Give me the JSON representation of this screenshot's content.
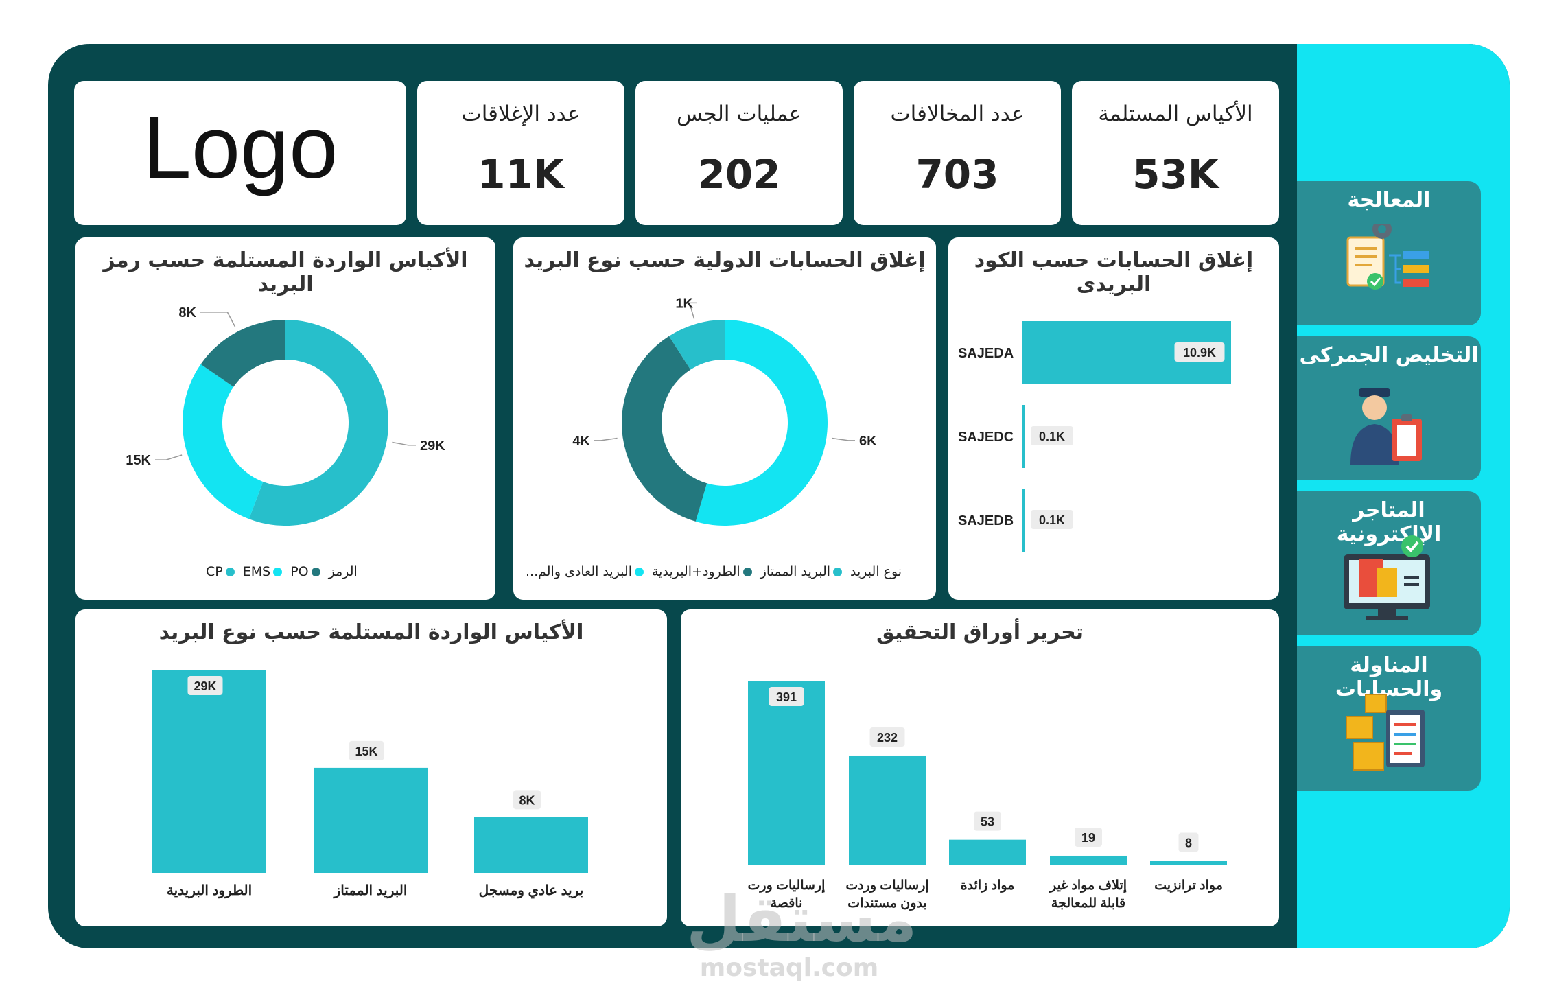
{
  "logo": {
    "text": "Logo"
  },
  "kpis": [
    {
      "title": "عدد الإغلاقات",
      "value": "11K"
    },
    {
      "title": "عمليات الجس",
      "value": "202"
    },
    {
      "title": "عدد المخالافات",
      "value": "703"
    },
    {
      "title": "الأكياس المستلمة",
      "value": "53K"
    }
  ],
  "sidebar": {
    "items": [
      {
        "label": "المعالجة",
        "icon": "processing-icon"
      },
      {
        "label": "التخليص الجمركى",
        "icon": "customs-officer-icon"
      },
      {
        "label": "المتاجر الإلكترونية",
        "icon": "ecommerce-store-icon"
      },
      {
        "label": "المناولة والحسابات",
        "icon": "boxes-clipboard-icon"
      }
    ]
  },
  "colors": {
    "dark": "#07484c",
    "teal": "#27bfcb",
    "cyan": "#13e4f2",
    "darkteal": "#23787e"
  },
  "watermark": {
    "arabic": "مستقل",
    "latin": "mostaql.com"
  },
  "chart_data": [
    {
      "id": "donut_code",
      "type": "pie",
      "title": "الأكياس الواردة المستلمة حسب رمز البريد",
      "legend_title": "الرمز",
      "labels": [
        "CP",
        "EMS",
        "PO"
      ],
      "values": [
        29,
        15,
        8
      ],
      "value_labels": [
        "29K",
        "15K",
        "8K"
      ],
      "colors": [
        "#27bfcb",
        "#13e4f2",
        "#23787e"
      ]
    },
    {
      "id": "donut_intl",
      "type": "pie",
      "title": "إغلاق الحسابات الدولية حسب نوع البريد",
      "legend_title": "نوع البريد",
      "labels": [
        "البريد العادى والم...",
        "الطرود+البريدية",
        "البريد الممتاز"
      ],
      "values": [
        6,
        4,
        1
      ],
      "value_labels": [
        "6K",
        "4K",
        "1K"
      ],
      "colors": [
        "#13e4f2",
        "#23787e",
        "#27bfcb"
      ]
    },
    {
      "id": "bar_code",
      "type": "bar",
      "orientation": "horizontal",
      "title": "إغلاق الحسابات حسب الكود البريدى",
      "categories": [
        "SAJEDA",
        "SAJEDC",
        "SAJEDB"
      ],
      "values": [
        10.9,
        0.1,
        0.1
      ],
      "value_labels": [
        "10.9K",
        "0.1K",
        "0.1K"
      ]
    },
    {
      "id": "bar_type",
      "type": "bar",
      "title": "الأكياس الواردة المستلمة حسب نوع البريد",
      "categories": [
        "الطرود البريدية",
        "البريد الممتاز",
        "بريد عادي ومسجل"
      ],
      "values": [
        29,
        15,
        8
      ],
      "value_labels": [
        "29K",
        "15K",
        "8K"
      ]
    },
    {
      "id": "bar_check",
      "type": "bar",
      "title": "تحرير أوراق التحقيق",
      "categories": [
        [
          "إرساليات ورت",
          "ناقصة"
        ],
        [
          "إرساليات وردت",
          "بدون مستندات"
        ],
        [
          "مواد زائدة"
        ],
        [
          "إتلاف مواد غير",
          "قابلة للمعالجة"
        ],
        [
          "مواد ترانزيت"
        ]
      ],
      "values": [
        391,
        232,
        53,
        19,
        8
      ],
      "value_labels": [
        "391",
        "232",
        "53",
        "19",
        "8"
      ]
    }
  ]
}
